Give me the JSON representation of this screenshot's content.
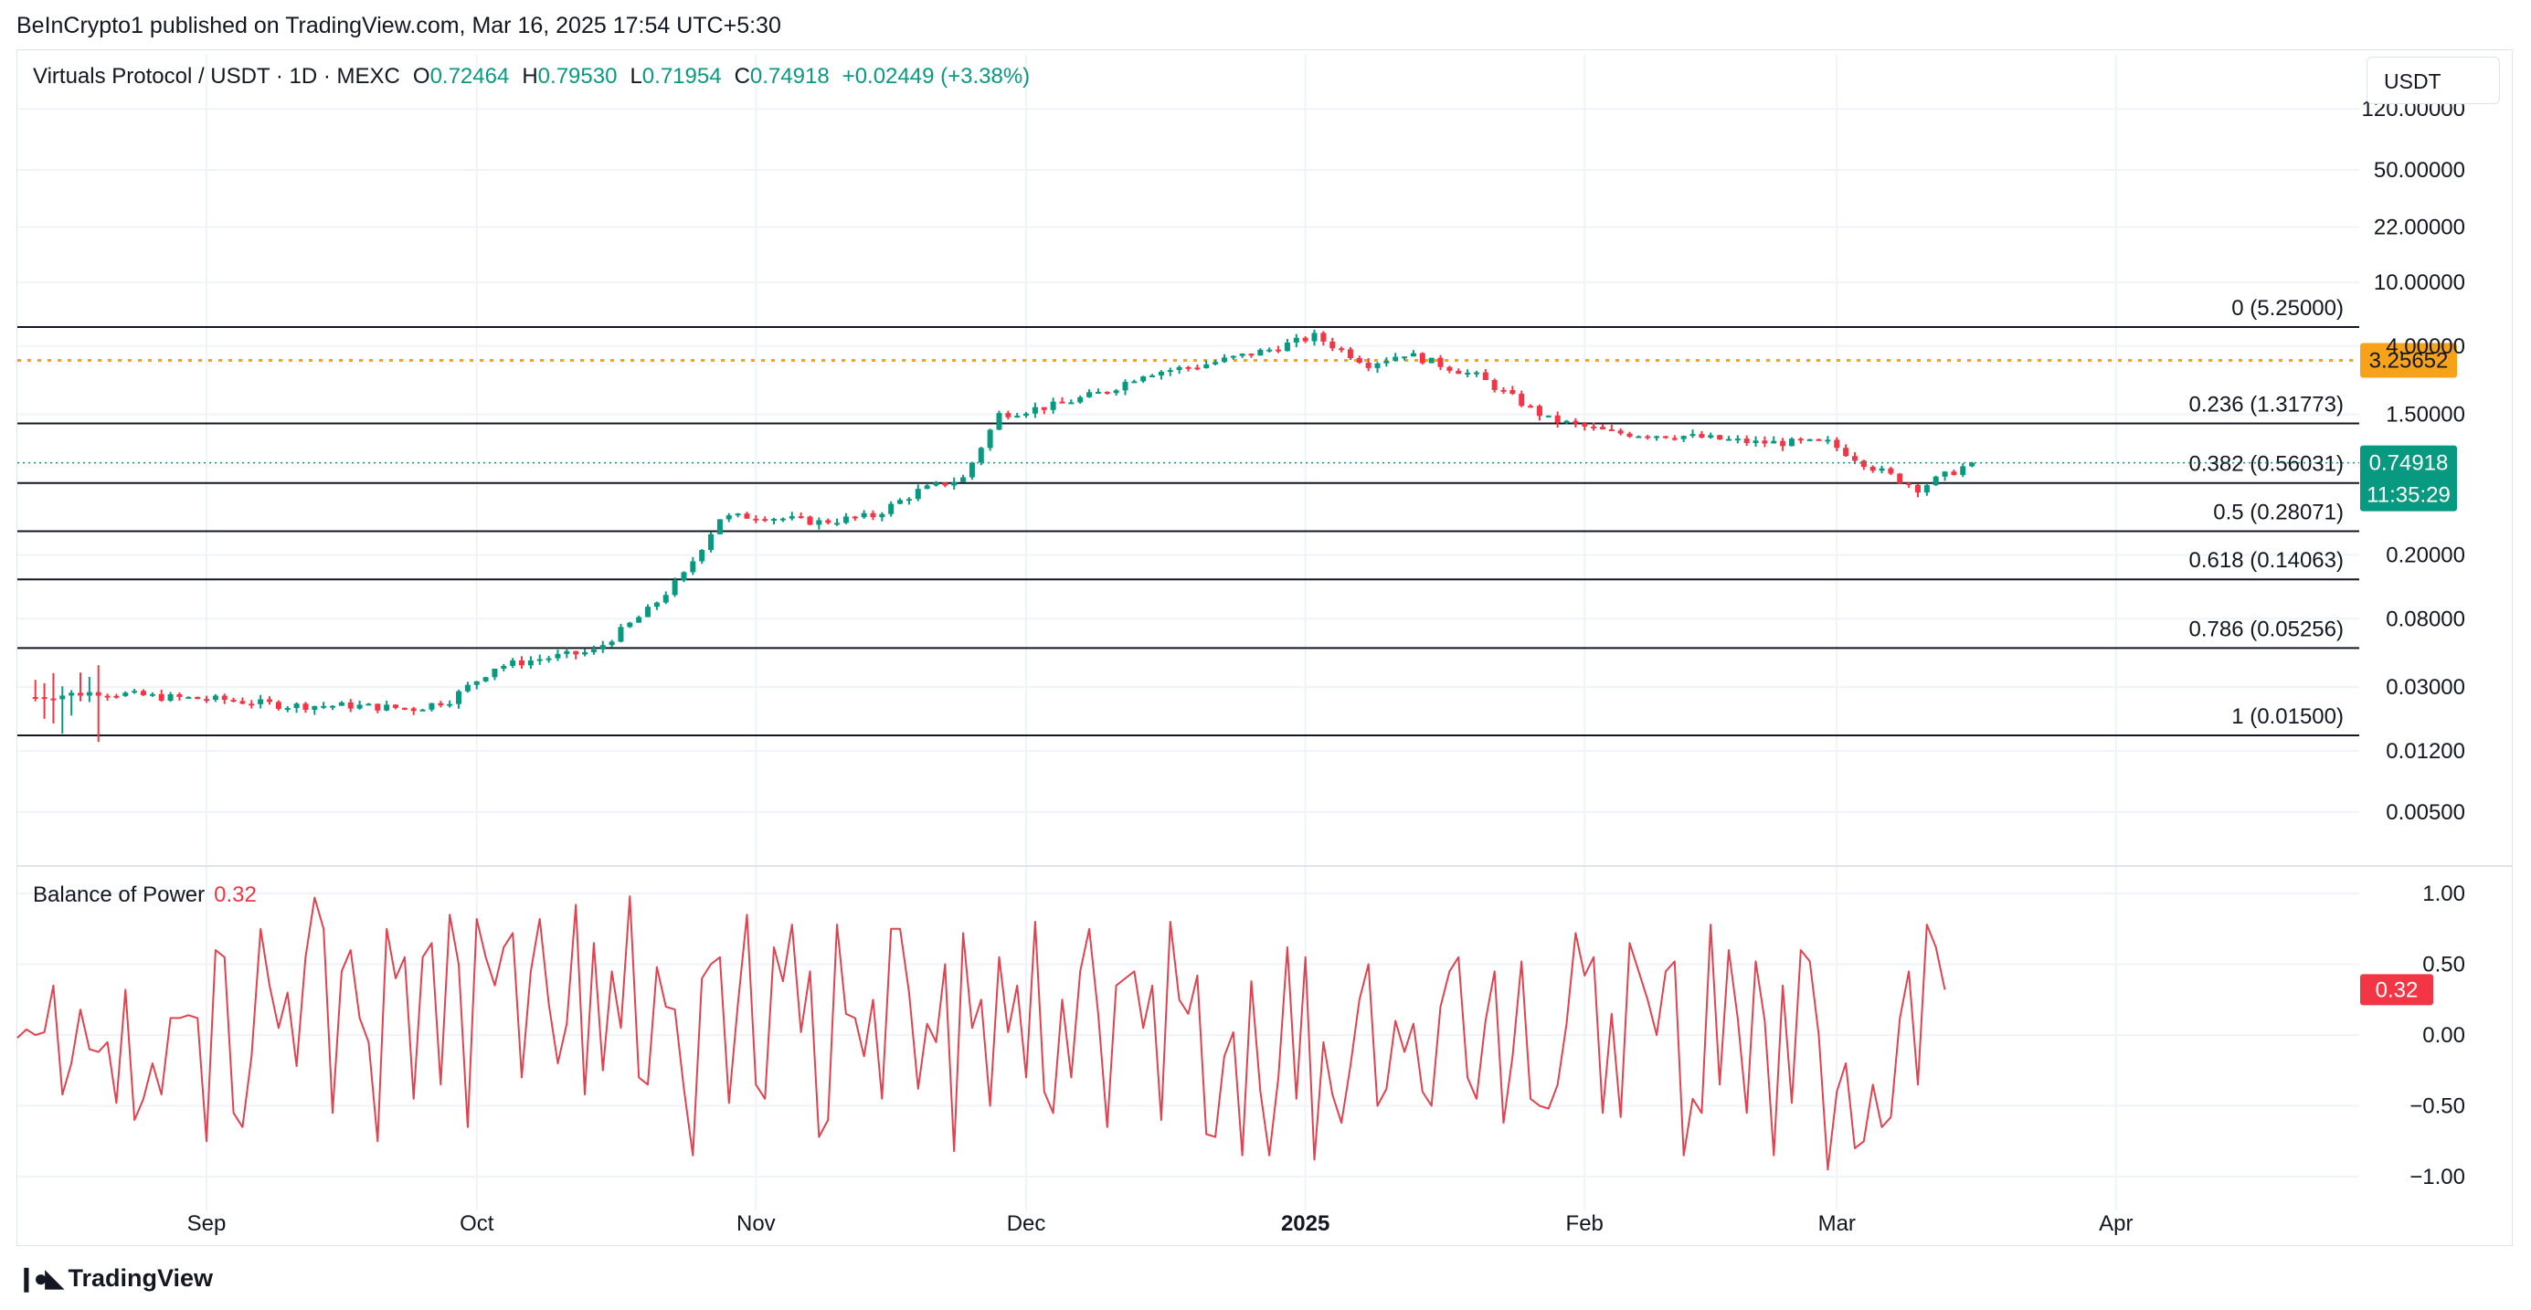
{
  "header": {
    "publisher": "BeInCrypto1 published on TradingView.com, Mar 16, 2025 17:54 UTC+5:30",
    "symbol": "Virtuals Protocol / USDT · 1D · MEXC",
    "open_label": "O",
    "open": "0.72464",
    "high_label": "H",
    "high": "0.79530",
    "low_label": "L",
    "low": "0.71954",
    "close_label": "C",
    "close": "0.74918",
    "change": "+0.02449 (+3.38%)",
    "currency": "USDT"
  },
  "footer": {
    "brand": "TradingView",
    "logo_icon": "tradingview-logo-icon"
  },
  "colors": {
    "up": "#089981",
    "down": "#f23645",
    "resistance": "#f7a21b",
    "bop": "#e0434f",
    "fib": "#131722"
  },
  "chart_data": [
    {
      "type": "candlestick",
      "title": "Virtuals Protocol / USDT · 1D · MEXC",
      "y_scale": "log",
      "y_ticks": [
        "120.00000",
        "50.00000",
        "22.00000",
        "10.00000",
        "4.00000",
        "1.50000",
        "0.20000",
        "0.08000",
        "0.03000",
        "0.01200",
        "0.00500"
      ],
      "y_tick_values": [
        120,
        50,
        22,
        10,
        4,
        1.5,
        0.2,
        0.08,
        0.03,
        0.012,
        0.005
      ],
      "x_ticks": [
        "Sep",
        "Oct",
        "Nov",
        "Dec",
        "2025",
        "Feb",
        "Mar",
        "Apr"
      ],
      "x_tick_dates": [
        "2024-09-01",
        "2024-10-01",
        "2024-11-01",
        "2024-12-01",
        "2025-01-01",
        "2025-02-01",
        "2025-03-01",
        "2025-04-01"
      ],
      "x_range": [
        "2024-08-11",
        "2025-04-28"
      ],
      "last_date": "2025-03-16",
      "fib_levels": [
        {
          "label": "0 (5.25000)",
          "value": 5.25
        },
        {
          "label": "0.236 (1.31773)",
          "value": 1.31773
        },
        {
          "label": "0.382 (0.56031)",
          "value": 0.56031
        },
        {
          "label": "0.5 (0.28071)",
          "value": 0.28071
        },
        {
          "label": "0.618 (0.14063)",
          "value": 0.14063
        },
        {
          "label": "0.786 (0.05256)",
          "value": 0.05256
        },
        {
          "label": "1 (0.01500)",
          "value": 0.015
        }
      ],
      "resistance": {
        "label": "3.25652",
        "value": 3.25652
      },
      "last_price": {
        "label": "0.74918",
        "countdown": "11:35:29",
        "value": 0.74918
      },
      "close_anchors": [
        [
          "2024-08-13",
          0.026
        ],
        [
          "2024-08-20",
          0.028
        ],
        [
          "2024-08-27",
          0.026
        ],
        [
          "2024-09-03",
          0.025
        ],
        [
          "2024-09-10",
          0.023
        ],
        [
          "2024-09-17",
          0.023
        ],
        [
          "2024-09-24",
          0.022
        ],
        [
          "2024-09-28",
          0.025
        ],
        [
          "2024-10-03",
          0.04
        ],
        [
          "2024-10-08",
          0.045
        ],
        [
          "2024-10-14",
          0.05
        ],
        [
          "2024-10-20",
          0.09
        ],
        [
          "2024-10-24",
          0.15
        ],
        [
          "2024-10-28",
          0.34
        ],
        [
          "2024-11-01",
          0.35
        ],
        [
          "2024-11-08",
          0.32
        ],
        [
          "2024-11-14",
          0.35
        ],
        [
          "2024-11-19",
          0.5
        ],
        [
          "2024-11-24",
          0.6
        ],
        [
          "2024-11-28",
          1.5
        ],
        [
          "2024-12-04",
          1.7
        ],
        [
          "2024-12-10",
          2.1
        ],
        [
          "2024-12-14",
          2.7
        ],
        [
          "2024-12-20",
          3.0
        ],
        [
          "2024-12-28",
          3.8
        ],
        [
          "2025-01-02",
          4.6
        ],
        [
          "2025-01-08",
          3.1
        ],
        [
          "2025-01-12",
          3.6
        ],
        [
          "2025-01-20",
          2.6
        ],
        [
          "2025-01-28",
          1.4
        ],
        [
          "2025-02-04",
          1.15
        ],
        [
          "2025-02-12",
          1.1
        ],
        [
          "2025-02-20",
          1.0
        ],
        [
          "2025-02-28",
          1.0
        ],
        [
          "2025-03-05",
          0.7
        ],
        [
          "2025-03-10",
          0.52
        ],
        [
          "2025-03-16",
          0.75
        ]
      ]
    },
    {
      "type": "line",
      "title": "Balance of Power",
      "current_value": "0.32",
      "y_ticks": [
        "1.00",
        "0.50",
        "0.00",
        "−0.50",
        "−1.00"
      ],
      "y_tick_values": [
        1,
        0.5,
        0,
        -0.5,
        -1
      ],
      "ylim": [
        -1.1,
        1.1
      ],
      "marker_label": "0.32",
      "start_date": "2024-08-11",
      "values": [
        -0.02,
        0.04,
        0.0,
        0.02,
        0.35,
        -0.42,
        -0.2,
        0.18,
        -0.1,
        -0.12,
        -0.05,
        -0.48,
        0.32,
        -0.6,
        -0.45,
        -0.2,
        -0.42,
        0.12,
        0.12,
        0.14,
        0.12,
        -0.75,
        0.6,
        0.55,
        -0.55,
        -0.65,
        -0.15,
        0.75,
        0.35,
        0.05,
        0.3,
        -0.22,
        0.55,
        0.97,
        0.75,
        -0.55,
        0.45,
        0.6,
        0.12,
        -0.05,
        -0.75,
        0.75,
        0.4,
        0.55,
        -0.45,
        0.55,
        0.65,
        -0.35,
        0.85,
        0.5,
        -0.65,
        0.82,
        0.55,
        0.35,
        0.62,
        0.72,
        -0.3,
        0.45,
        0.82,
        0.22,
        -0.2,
        0.08,
        0.92,
        -0.42,
        0.65,
        -0.25,
        0.45,
        0.05,
        0.98,
        -0.3,
        -0.35,
        0.48,
        0.2,
        0.18,
        -0.38,
        -0.85,
        0.4,
        0.5,
        0.55,
        -0.48,
        0.22,
        0.85,
        -0.35,
        -0.45,
        0.62,
        0.38,
        0.78,
        0.02,
        0.45,
        -0.72,
        -0.6,
        0.78,
        0.15,
        0.12,
        -0.15,
        0.25,
        -0.45,
        0.75,
        0.75,
        0.3,
        -0.38,
        0.08,
        -0.05,
        0.5,
        -0.82,
        0.72,
        0.05,
        0.25,
        -0.5,
        0.55,
        0.02,
        0.35,
        -0.3,
        0.8,
        -0.4,
        -0.55,
        0.25,
        -0.3,
        0.45,
        0.75,
        0.15,
        -0.65,
        0.35,
        0.4,
        0.45,
        0.05,
        0.35,
        -0.6,
        0.8,
        0.25,
        0.15,
        0.42,
        -0.7,
        -0.72,
        -0.15,
        0.02,
        -0.85,
        0.38,
        -0.4,
        -0.85,
        -0.3,
        0.62,
        -0.45,
        0.55,
        -0.88,
        -0.05,
        -0.42,
        -0.62,
        -0.22,
        0.25,
        0.5,
        -0.5,
        -0.38,
        0.1,
        -0.12,
        0.08,
        -0.4,
        -0.5,
        0.2,
        0.45,
        0.55,
        -0.3,
        -0.45,
        0.1,
        0.45,
        -0.62,
        -0.15,
        0.52,
        -0.45,
        -0.5,
        -0.52,
        -0.35,
        0.08,
        0.72,
        0.42,
        0.55,
        -0.55,
        0.15,
        -0.58,
        0.65,
        0.45,
        0.25,
        0.0,
        0.45,
        0.52,
        -0.85,
        -0.45,
        -0.55,
        0.78,
        -0.35,
        0.6,
        0.12,
        -0.55,
        0.52,
        0.1,
        -0.85,
        0.35,
        -0.48,
        0.6,
        0.52,
        0.0,
        -0.95,
        -0.4,
        -0.2,
        -0.8,
        -0.75,
        -0.35,
        -0.65,
        -0.58,
        0.12,
        0.45,
        -0.35,
        0.78,
        0.62,
        0.32
      ]
    }
  ]
}
